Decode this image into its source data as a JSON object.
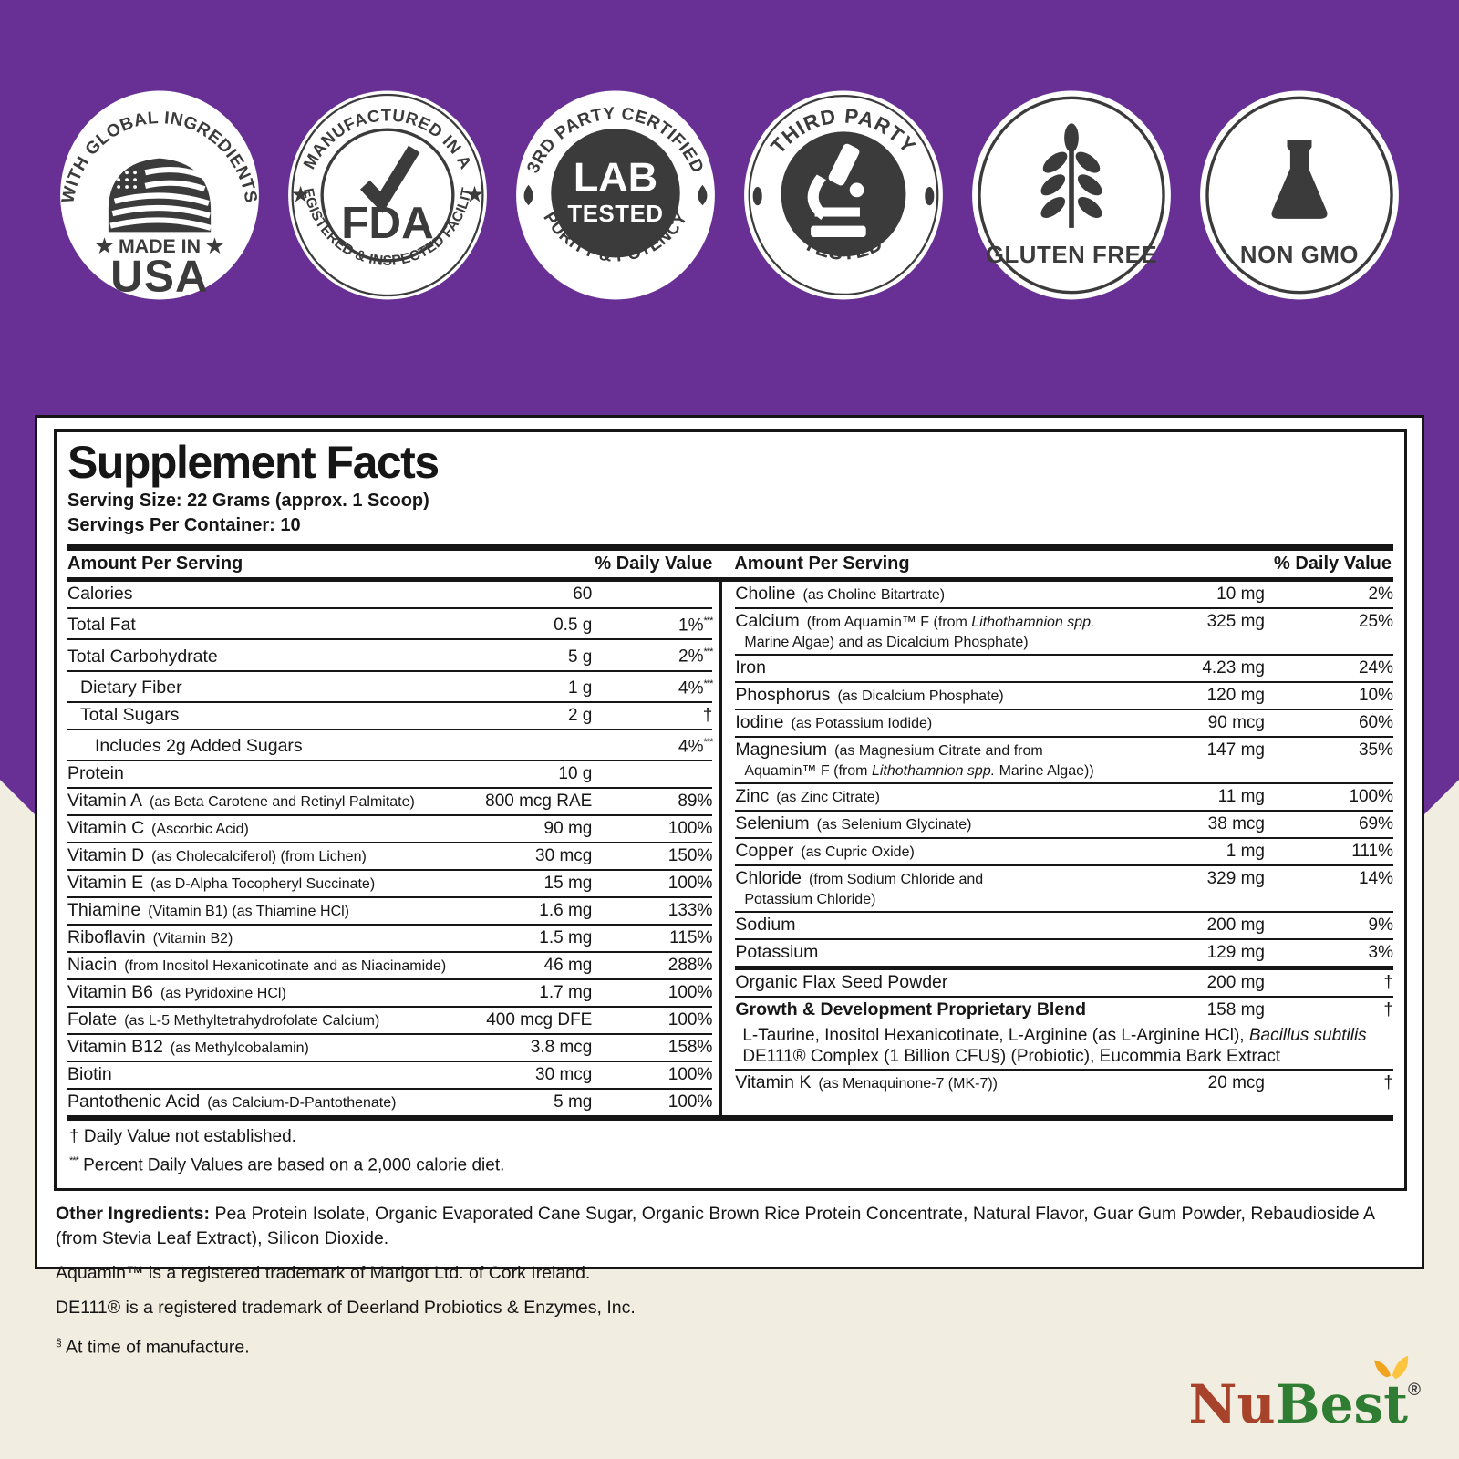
{
  "colors": {
    "purple": "#682f95",
    "beige": "#f2ede1",
    "badge_ink": "#3b3b3b",
    "logo_red": "#a8432b",
    "logo_green": "#2e7d33",
    "leaf_yellow_1": "#f0a31d",
    "leaf_yellow_2": "#fdc53f"
  },
  "badges": {
    "usa": {
      "top": "WITH GLOBAL INGREDIENTS",
      "made_in": "★ MADE IN ★",
      "usa": "USA"
    },
    "fda": {
      "top": "MANUFACTURED IN A",
      "star_left": "★",
      "star_right": "★",
      "fda": "FDA",
      "bottom": "REGISTERED & INSPECTED FACILITY"
    },
    "lab": {
      "top": "3RD PARTY CERTIFIED",
      "lab": "LAB",
      "tested": "TESTED",
      "bottom": "PURITY & POTENCY"
    },
    "third_party": {
      "top": "THIRD PARTY",
      "bottom": "TESTED"
    },
    "gluten": {
      "label": "GLUTEN FREE"
    },
    "nongmo": {
      "label": "NON GMO"
    }
  },
  "facts": {
    "title": "Supplement Facts",
    "serving_size": "Serving Size: 22 Grams (approx. 1 Scoop)",
    "servings_per_container": "Servings Per Container: 10",
    "amount_header": "Amount Per Serving",
    "dv_header": "% Daily Value",
    "left_rows": [
      {
        "name": "Calories",
        "amount": "60",
        "dv": ""
      },
      {
        "name": "Total Fat",
        "amount": "0.5 g",
        "dv": "1%",
        "dvmark": "***"
      },
      {
        "name": "Total Carbohydrate",
        "amount": "5 g",
        "dv": "2%",
        "dvmark": "***"
      },
      {
        "name": "Dietary Fiber",
        "indent": 1,
        "amount": "1 g",
        "dv": "4%",
        "dvmark": "***"
      },
      {
        "name": "Total Sugars",
        "indent": 1,
        "amount": "2 g",
        "dv": "†"
      },
      {
        "name": "Includes 2g Added Sugars",
        "indent": 2,
        "amount": "",
        "dv": "4%",
        "dvmark": "***"
      },
      {
        "name": "Protein",
        "amount": "10 g",
        "dv": ""
      },
      {
        "name": "Vitamin A",
        "desc": "(as Beta Carotene and Retinyl Palmitate)",
        "amount": "800 mcg RAE",
        "dv": "89%"
      },
      {
        "name": "Vitamin C",
        "desc": "(Ascorbic Acid)",
        "amount": "90 mg",
        "dv": "100%"
      },
      {
        "name": "Vitamin D",
        "desc": "(as Cholecalciferol) (from Lichen)",
        "amount": "30 mcg",
        "dv": "150%"
      },
      {
        "name": "Vitamin E",
        "desc": "(as D-Alpha Tocopheryl Succinate)",
        "amount": "15 mg",
        "dv": "100%"
      },
      {
        "name": "Thiamine",
        "desc": "(Vitamin B1) (as Thiamine HCl)",
        "amount": "1.6 mg",
        "dv": "133%"
      },
      {
        "name": "Riboflavin",
        "desc": "(Vitamin B2)",
        "amount": "1.5 mg",
        "dv": "115%"
      },
      {
        "name": "Niacin",
        "desc": "(from Inositol Hexanicotinate and as Niacinamide)",
        "amount": "46 mg",
        "dv": "288%"
      },
      {
        "name": "Vitamin B6",
        "desc": "(as Pyridoxine HCl)",
        "amount": "1.7 mg",
        "dv": "100%"
      },
      {
        "name": "Folate",
        "desc": "(as L-5 Methyltetrahydrofolate Calcium)",
        "amount": "400 mcg DFE",
        "dv": "100%"
      },
      {
        "name": "Vitamin B12",
        "desc": "(as Methylcobalamin)",
        "amount": "3.8 mcg",
        "dv": "158%"
      },
      {
        "name": "Biotin",
        "amount": "30 mcg",
        "dv": "100%"
      },
      {
        "name": "Pantothenic Acid",
        "desc": "(as Calcium-D-Pantothenate)",
        "amount": "5 mg",
        "dv": "100%"
      }
    ],
    "right_rows": [
      {
        "name": "Choline",
        "desc": "(as Choline Bitartrate)",
        "amount": "10 mg",
        "dv": "2%"
      },
      {
        "name": "Calcium",
        "desc": "(from Aquamin™ F (from *Lithothamnion spp.*",
        "line2": "Marine Algae) and as Dicalcium Phosphate)",
        "amount": "325 mg",
        "dv": "25%"
      },
      {
        "name": "Iron",
        "amount": "4.23 mg",
        "dv": "24%"
      },
      {
        "name": "Phosphorus",
        "desc": "(as Dicalcium Phosphate)",
        "amount": "120 mg",
        "dv": "10%"
      },
      {
        "name": "Iodine",
        "desc": "(as Potassium Iodide)",
        "amount": "90 mcg",
        "dv": "60%"
      },
      {
        "name": "Magnesium",
        "desc": "(as Magnesium Citrate and from",
        "line2": "Aquamin™ F (from *Lithothamnion spp.* Marine Algae))",
        "amount": "147 mg",
        "dv": "35%"
      },
      {
        "name": "Zinc",
        "desc": "(as Zinc Citrate)",
        "amount": "11 mg",
        "dv": "100%"
      },
      {
        "name": "Selenium",
        "desc": "(as Selenium Glycinate)",
        "amount": "38 mcg",
        "dv": "69%"
      },
      {
        "name": "Copper",
        "desc": "(as Cupric Oxide)",
        "amount": "1 mg",
        "dv": "111%"
      },
      {
        "name": "Chloride",
        "desc": "(from Sodium Chloride and",
        "line2": "Potassium Chloride)",
        "amount": "329 mg",
        "dv": "14%"
      },
      {
        "name": "Sodium",
        "amount": "200 mg",
        "dv": "9%"
      },
      {
        "name": "Potassium",
        "amount": "129 mg",
        "dv": "3%"
      },
      {
        "name": "Organic Flax Seed Powder",
        "topbar": true,
        "amount": "200 mg",
        "dv": "†"
      },
      {
        "name": "Growth & Development Proprietary Blend",
        "bold": true,
        "amount": "158 mg",
        "dv": "†"
      },
      {
        "noline": true,
        "lines": [
          "L-Taurine, Inositol Hexanicotinate, L-Arginine (as L-Arginine HCl), *Bacillus subtilis*",
          "DE111® Complex (1 Billion CFU§) (Probiotic), Eucommia Bark Extract"
        ]
      },
      {
        "name": "Vitamin K",
        "desc": "(as Menaquinone-7 (MK-7))",
        "amount": "20 mcg",
        "dv": "†"
      }
    ],
    "footnote_dagger_mark": "†",
    "footnote_dagger": "Daily Value not established.",
    "footnote_ast_mark": "***",
    "footnote_ast": "Percent Daily Values are based on a 2,000 calorie diet."
  },
  "other": {
    "label": "Other Ingredients:",
    "text": "Pea Protein Isolate, Organic Evaporated Cane Sugar, Organic Brown Rice Protein Concentrate, Natural Flavor, Guar Gum Powder, Rebaudioside A (from Stevia Leaf Extract), Silicon Dioxide.",
    "aquamin": "Aquamin™ is a registered trademark of Marigot Ltd. of Cork Ireland.",
    "de111": "DE111® is a registered trademark of Deerland Probiotics & Enzymes, Inc.",
    "manufacture_mark": "§",
    "manufacture_text": "At time of manufacture."
  },
  "logo": {
    "nu": "Nu",
    "best": "Best",
    "reg": "®"
  }
}
